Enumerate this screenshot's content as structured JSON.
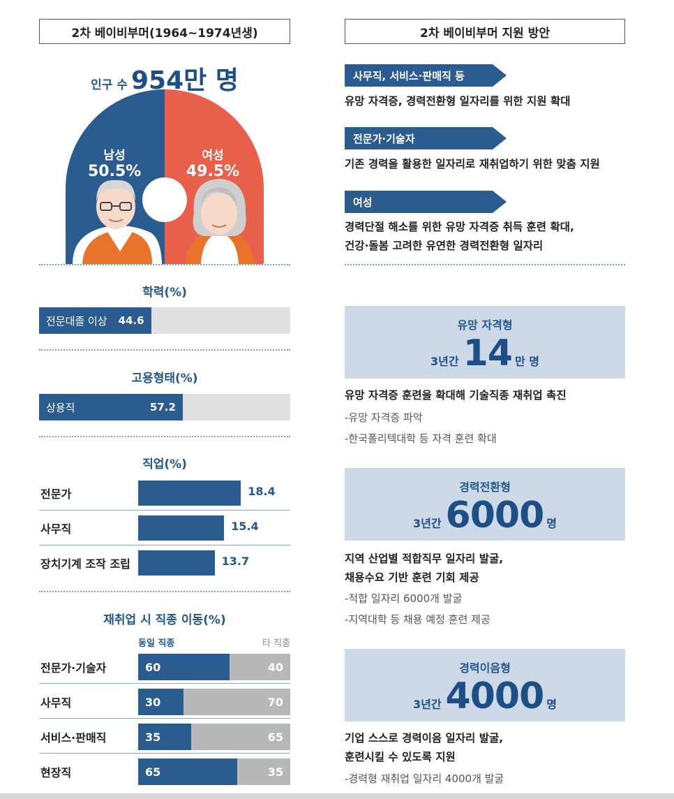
{
  "left": {
    "header": "2차 베이비부머(1964~1974년생)",
    "population_prefix": "인구 수",
    "population_value": "954만 명",
    "gender_chart": {
      "male_label": "남성",
      "male_pct": "50.5%",
      "female_label": "여성",
      "female_pct": "49.5%"
    },
    "education": {
      "title": "학력(%)",
      "label": "전문대졸 이상",
      "value": "44.6"
    },
    "employment": {
      "title": "고용형태(%)",
      "label": "상용직",
      "value": "57.2"
    },
    "occupation": {
      "title": "직업(%)",
      "rows": [
        {
          "name": "전문가",
          "value": "18.4"
        },
        {
          "name": "사무직",
          "value": "15.4"
        },
        {
          "name": "장치기계 조작 조립",
          "value": "13.7"
        }
      ]
    },
    "job_move": {
      "title": "재취업 시 직종 이동(%)",
      "same_label": "동일 직종",
      "other_label": "타 직종",
      "rows": [
        {
          "name": "전문가·기술자",
          "same": "60",
          "other": "40"
        },
        {
          "name": "사무직",
          "same": "30",
          "other": "70"
        },
        {
          "name": "서비스·판매직",
          "same": "35",
          "other": "65"
        },
        {
          "name": "현장직",
          "same": "65",
          "other": "35"
        }
      ]
    }
  },
  "right": {
    "header": "2차 베이비부머 지원 방안",
    "targets": [
      {
        "tag": "사무직, 서비스·판매직 등",
        "desc1": "유망 자격증, 경력전환형 일자리를 위한 지원 확대",
        "desc2": ""
      },
      {
        "tag": "전문가·기술자",
        "desc1": "기존 경력을 활용한 일자리로 재취업하기 위한 맞춤 지원",
        "desc2": ""
      },
      {
        "tag": "여성",
        "desc1": "경력단절 해소를 위한 유망 자격증 취득 훈련 확대,",
        "desc2": "건강·돌봄 고려한 유연한 경력전환형 일자리"
      }
    ],
    "plans": [
      {
        "title": "유망 자격형",
        "prefix": "3년간",
        "number": "14",
        "unit": "만 명",
        "desc1": "유망 자격증 훈련을 확대해 기술직종 재취업 촉진",
        "desc2": "",
        "bullet1": "-유망 자격증 파악",
        "bullet2": "-한국폴리텍대학 등 자격 훈련 확대"
      },
      {
        "title": "경력전환형",
        "prefix": "3년간",
        "number": "6000",
        "unit": "명",
        "desc1": "지역 산업별 적합직무 일자리 발굴,",
        "desc2": "채용수요 기반 훈련 기회 제공",
        "bullet1": "-적합 일자리 6000개 발굴",
        "bullet2": "-지역대학 등 채용 예정 훈련 제공"
      },
      {
        "title": "경력이음형",
        "prefix": "3년간",
        "number": "4000",
        "unit": "명",
        "desc1": "기업 스스로 경력이음 일자리 발굴,",
        "desc2": "훈련시킬 수 있도록 지원",
        "bullet1": "-경력형 재취업 일자리 4000개 발굴",
        "bullet2": ""
      }
    ]
  },
  "colors": {
    "navy": "#2b5c90",
    "coral": "#e8604c",
    "grey_bar": "#e0e0e0",
    "other_bar": "#b8b8b8",
    "plan_bg": "#cdd9e6"
  },
  "chart_data": [
    {
      "type": "pie",
      "title": "",
      "categories": [
        "남성",
        "여성"
      ],
      "values": [
        50.5,
        49.5
      ]
    },
    {
      "type": "bar",
      "title": "학력(%)",
      "categories": [
        "전문대졸 이상"
      ],
      "values": [
        44.6
      ],
      "ylim": [
        0,
        100
      ]
    },
    {
      "type": "bar",
      "title": "고용형태(%)",
      "categories": [
        "상용직"
      ],
      "values": [
        57.2
      ],
      "ylim": [
        0,
        100
      ]
    },
    {
      "type": "bar",
      "title": "직업(%)",
      "categories": [
        "전문가",
        "사무직",
        "장치기계 조작 조립"
      ],
      "values": [
        18.4,
        15.4,
        13.7
      ]
    },
    {
      "type": "bar",
      "title": "재취업 시 직종 이동(%)",
      "categories": [
        "전문가·기술자",
        "사무직",
        "서비스·판매직",
        "현장직"
      ],
      "series": [
        {
          "name": "동일 직종",
          "values": [
            60,
            30,
            35,
            65
          ]
        },
        {
          "name": "타 직종",
          "values": [
            40,
            70,
            65,
            35
          ]
        }
      ],
      "ylim": [
        0,
        100
      ]
    }
  ]
}
